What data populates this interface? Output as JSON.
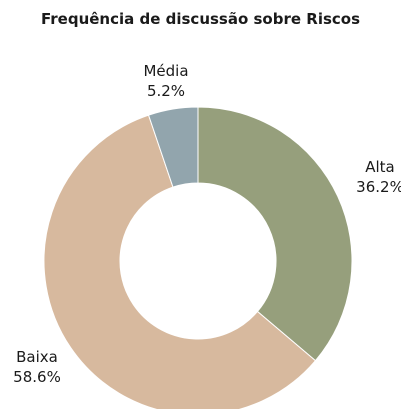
{
  "chart_data": {
    "type": "pie",
    "title": "Frequência de discussão sobre Riscos",
    "categories": [
      "Alta",
      "Baixa",
      "Média"
    ],
    "values": [
      36.2,
      58.6,
      5.2
    ],
    "value_labels": [
      "36.2%",
      "58.6%",
      "5.2%"
    ],
    "colors": [
      "#969f7c",
      "#d7b99e",
      "#92a5ad"
    ],
    "donut": true,
    "legend": "none"
  }
}
